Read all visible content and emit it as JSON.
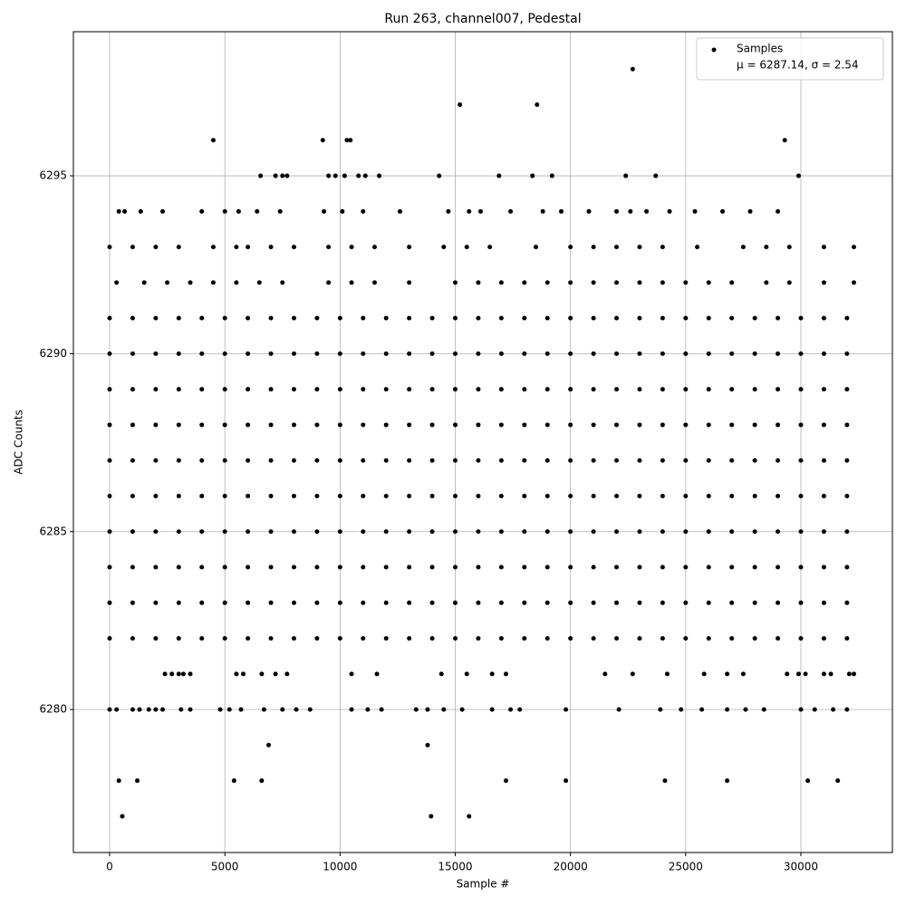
{
  "chart_data": {
    "type": "scatter",
    "title": "Run 263, channel007, Pedestal",
    "xlabel": "Sample #",
    "ylabel": "ADC Counts",
    "xlim": [
      -1573,
      33972
    ],
    "ylim": [
      6275.98,
      6299.05
    ],
    "xticks": [
      0,
      5000,
      10000,
      15000,
      20000,
      25000,
      30000
    ],
    "yticks": [
      6280,
      6285,
      6290,
      6295
    ],
    "grid": true,
    "legend_position": "upper right",
    "legend_stats": "μ = 6287.14, σ = 2.54",
    "x": [
      0,
      1000,
      2000,
      3000,
      4000,
      5000,
      6000,
      7000,
      8000,
      9000,
      10000,
      11000,
      12000,
      13000,
      14000,
      15000,
      16000,
      17000,
      18000,
      19000,
      20000,
      21000,
      22000,
      23000,
      24000,
      25000,
      26000,
      27000,
      28000,
      29000,
      30000,
      31000,
      32000,
      0,
      1000,
      2000,
      3000,
      4000,
      5000,
      6000,
      7000,
      8000,
      9000,
      10000,
      11000,
      12000,
      13000,
      14000,
      15000,
      16000,
      17000,
      18000,
      19000,
      20000,
      21000,
      22000,
      23000,
      24000,
      25000,
      26000,
      27000,
      28000,
      29000,
      30000,
      31000,
      32000,
      0,
      1000,
      2000,
      3000,
      4000,
      5000,
      6000,
      7000,
      8000,
      9000,
      10000,
      11000,
      12000,
      13000,
      14000,
      15000,
      16000,
      17000,
      18000,
      19000,
      20000,
      21000,
      22000,
      23000,
      24000,
      25000,
      26000,
      27000,
      28000,
      29000,
      30000,
      31000,
      32000,
      0,
      1000,
      2000,
      3000,
      4000,
      5000,
      6000,
      7000,
      8000,
      9000,
      10000,
      11000,
      12000,
      13000,
      14000,
      15000,
      16000,
      17000,
      18000,
      19000,
      20000,
      21000,
      22000,
      23000,
      24000,
      25000,
      26000,
      27000,
      28000,
      29000,
      30000,
      31000,
      32000,
      0,
      1000,
      2000,
      3000,
      4000,
      5000,
      6000,
      7000,
      8000,
      9000,
      10000,
      11000,
      12000,
      13000,
      14000,
      15000,
      16000,
      17000,
      18000,
      19000,
      20000,
      21000,
      22000,
      23000,
      24000,
      25000,
      26000,
      27000,
      28000,
      29000,
      30000,
      31000,
      32000,
      0,
      1000,
      2000,
      3000,
      4000,
      5000,
      6000,
      7000,
      8000,
      9000,
      10000,
      11000,
      12000,
      13000,
      14000,
      15000,
      16000,
      17000,
      18000,
      19000,
      20000,
      21000,
      22000,
      23000,
      24000,
      25000,
      26000,
      27000,
      28000,
      29000,
      30000,
      31000,
      32000,
      0,
      1000,
      2000,
      3000,
      4000,
      5000,
      6000,
      7000,
      8000,
      9000,
      10000,
      11000,
      12000,
      13000,
      14000,
      15000,
      16000,
      17000,
      18000,
      19000,
      20000,
      21000,
      22000,
      23000,
      24000,
      25000,
      26000,
      27000,
      28000,
      29000,
      30000,
      31000,
      32000,
      0,
      1000,
      2000,
      3000,
      4000,
      5000,
      6000,
      7000,
      8000,
      9000,
      10000,
      11000,
      12000,
      13000,
      14000,
      15000,
      16000,
      17000,
      18000,
      19000,
      20000,
      21000,
      22000,
      23000,
      24000,
      25000,
      26000,
      27000,
      28000,
      29000,
      30000,
      31000,
      32000,
      0,
      1000,
      2000,
      3000,
      4000,
      5000,
      6000,
      7000,
      8000,
      9000,
      10000,
      11000,
      12000,
      13000,
      14000,
      15000,
      16000,
      17000,
      18000,
      19000,
      20000,
      21000,
      22000,
      23000,
      24000,
      25000,
      26000,
      27000,
      28000,
      29000,
      30000,
      31000,
      32000,
      0,
      1000,
      2000,
      3000,
      4000,
      5000,
      6000,
      7000,
      8000,
      9000,
      10000,
      11000,
      12000,
      13000,
      14000,
      15000,
      16000,
      17000,
      18000,
      19000,
      20000,
      21000,
      22000,
      23000,
      24000,
      25000,
      26000,
      27000,
      28000,
      29000,
      30000,
      31000,
      32000,
      22700,
      15200,
      18550,
      4500,
      9250,
      10300,
      10450,
      29300,
      6550,
      7200,
      7500,
      7700,
      9500,
      9800,
      10200,
      10800,
      11100,
      11700,
      14300,
      16900,
      18350,
      19200,
      22400,
      23700,
      29900,
      400,
      650,
      1350,
      2300,
      4000,
      5000,
      5600,
      6400,
      7400,
      9300,
      10100,
      11000,
      12600,
      14700,
      15600,
      16100,
      17400,
      18800,
      19600,
      20800,
      22000,
      22600,
      23300,
      24300,
      25400,
      26600,
      27800,
      29000,
      0,
      1000,
      2000,
      3000,
      4500,
      5500,
      6000,
      7000,
      8000,
      9500,
      10500,
      11500,
      13000,
      14500,
      15500,
      16500,
      18500,
      20000,
      21000,
      22000,
      23000,
      24000,
      25500,
      27500,
      28500,
      29500,
      31000,
      32300,
      300,
      1500,
      2500,
      3500,
      4500,
      5500,
      6500,
      7500,
      9500,
      10500,
      11500,
      13000,
      15000,
      16000,
      17000,
      18000,
      19000,
      20000,
      21000,
      22000,
      23000,
      24000,
      25000,
      26000,
      27000,
      28500,
      29500,
      31000,
      32300,
      2400,
      2700,
      3000,
      3200,
      3500,
      5500,
      5800,
      6600,
      7200,
      7700,
      10500,
      11600,
      14400,
      15500,
      16600,
      17200,
      21500,
      22700,
      24200,
      25800,
      26800,
      27500,
      29400,
      29900,
      30200,
      31000,
      31300,
      32100,
      32300,
      0,
      300,
      1000,
      1300,
      1700,
      2000,
      2300,
      3100,
      3500,
      4800,
      5200,
      5700,
      6700,
      7500,
      8100,
      8700,
      10500,
      11200,
      11800,
      13300,
      13800,
      14500,
      15300,
      16600,
      17400,
      17800,
      19800,
      22100,
      23900,
      24800,
      25700,
      26800,
      27600,
      28400,
      30000,
      30600,
      31400,
      32000,
      6900,
      13800,
      400,
      1200,
      5400,
      6600,
      17200,
      19800,
      24100,
      26800,
      30300,
      31600,
      550,
      13950,
      15600
    ],
    "series": [
      {
        "name": "Samples",
        "color": "#000000",
        "values": [
          6282,
          6282,
          6282,
          6282,
          6282,
          6282,
          6282,
          6282,
          6282,
          6282,
          6282,
          6282,
          6282,
          6282,
          6282,
          6282,
          6282,
          6282,
          6282,
          6282,
          6282,
          6282,
          6282,
          6282,
          6282,
          6282,
          6282,
          6282,
          6282,
          6282,
          6282,
          6282,
          6282,
          6283,
          6283,
          6283,
          6283,
          6283,
          6283,
          6283,
          6283,
          6283,
          6283,
          6283,
          6283,
          6283,
          6283,
          6283,
          6283,
          6283,
          6283,
          6283,
          6283,
          6283,
          6283,
          6283,
          6283,
          6283,
          6283,
          6283,
          6283,
          6283,
          6283,
          6283,
          6283,
          6283,
          6284,
          6284,
          6284,
          6284,
          6284,
          6284,
          6284,
          6284,
          6284,
          6284,
          6284,
          6284,
          6284,
          6284,
          6284,
          6284,
          6284,
          6284,
          6284,
          6284,
          6284,
          6284,
          6284,
          6284,
          6284,
          6284,
          6284,
          6284,
          6284,
          6284,
          6284,
          6284,
          6284,
          6285,
          6285,
          6285,
          6285,
          6285,
          6285,
          6285,
          6285,
          6285,
          6285,
          6285,
          6285,
          6285,
          6285,
          6285,
          6285,
          6285,
          6285,
          6285,
          6285,
          6285,
          6285,
          6285,
          6285,
          6285,
          6285,
          6285,
          6285,
          6285,
          6285,
          6285,
          6285,
          6285,
          6286,
          6286,
          6286,
          6286,
          6286,
          6286,
          6286,
          6286,
          6286,
          6286,
          6286,
          6286,
          6286,
          6286,
          6286,
          6286,
          6286,
          6286,
          6286,
          6286,
          6286,
          6286,
          6286,
          6286,
          6286,
          6286,
          6286,
          6286,
          6286,
          6286,
          6286,
          6286,
          6286,
          6287,
          6287,
          6287,
          6287,
          6287,
          6287,
          6287,
          6287,
          6287,
          6287,
          6287,
          6287,
          6287,
          6287,
          6287,
          6287,
          6287,
          6287,
          6287,
          6287,
          6287,
          6287,
          6287,
          6287,
          6287,
          6287,
          6287,
          6287,
          6287,
          6287,
          6287,
          6287,
          6287,
          6288,
          6288,
          6288,
          6288,
          6288,
          6288,
          6288,
          6288,
          6288,
          6288,
          6288,
          6288,
          6288,
          6288,
          6288,
          6288,
          6288,
          6288,
          6288,
          6288,
          6288,
          6288,
          6288,
          6288,
          6288,
          6288,
          6288,
          6288,
          6288,
          6288,
          6288,
          6288,
          6288,
          6289,
          6289,
          6289,
          6289,
          6289,
          6289,
          6289,
          6289,
          6289,
          6289,
          6289,
          6289,
          6289,
          6289,
          6289,
          6289,
          6289,
          6289,
          6289,
          6289,
          6289,
          6289,
          6289,
          6289,
          6289,
          6289,
          6289,
          6289,
          6289,
          6289,
          6289,
          6289,
          6289,
          6290,
          6290,
          6290,
          6290,
          6290,
          6290,
          6290,
          6290,
          6290,
          6290,
          6290,
          6290,
          6290,
          6290,
          6290,
          6290,
          6290,
          6290,
          6290,
          6290,
          6290,
          6290,
          6290,
          6290,
          6290,
          6290,
          6290,
          6290,
          6290,
          6290,
          6290,
          6290,
          6290,
          6291,
          6291,
          6291,
          6291,
          6291,
          6291,
          6291,
          6291,
          6291,
          6291,
          6291,
          6291,
          6291,
          6291,
          6291,
          6291,
          6291,
          6291,
          6291,
          6291,
          6291,
          6291,
          6291,
          6291,
          6291,
          6291,
          6291,
          6291,
          6291,
          6291,
          6291,
          6291,
          6291,
          6298,
          6297,
          6297,
          6296,
          6296,
          6296,
          6296,
          6296,
          6295,
          6295,
          6295,
          6295,
          6295,
          6295,
          6295,
          6295,
          6295,
          6295,
          6295,
          6295,
          6295,
          6295,
          6295,
          6295,
          6295,
          6294,
          6294,
          6294,
          6294,
          6294,
          6294,
          6294,
          6294,
          6294,
          6294,
          6294,
          6294,
          6294,
          6294,
          6294,
          6294,
          6294,
          6294,
          6294,
          6294,
          6294,
          6294,
          6294,
          6294,
          6294,
          6294,
          6294,
          6294,
          6293,
          6293,
          6293,
          6293,
          6293,
          6293,
          6293,
          6293,
          6293,
          6293,
          6293,
          6293,
          6293,
          6293,
          6293,
          6293,
          6293,
          6293,
          6293,
          6293,
          6293,
          6293,
          6293,
          6293,
          6293,
          6293,
          6293,
          6293,
          6292,
          6292,
          6292,
          6292,
          6292,
          6292,
          6292,
          6292,
          6292,
          6292,
          6292,
          6292,
          6292,
          6292,
          6292,
          6292,
          6292,
          6292,
          6292,
          6292,
          6292,
          6292,
          6292,
          6292,
          6292,
          6292,
          6292,
          6292,
          6292,
          6281,
          6281,
          6281,
          6281,
          6281,
          6281,
          6281,
          6281,
          6281,
          6281,
          6281,
          6281,
          6281,
          6281,
          6281,
          6281,
          6281,
          6281,
          6281,
          6281,
          6281,
          6281,
          6281,
          6281,
          6281,
          6281,
          6281,
          6281,
          6281,
          6280,
          6280,
          6280,
          6280,
          6280,
          6280,
          6280,
          6280,
          6280,
          6280,
          6280,
          6280,
          6280,
          6280,
          6280,
          6280,
          6280,
          6280,
          6280,
          6280,
          6280,
          6280,
          6280,
          6280,
          6280,
          6280,
          6280,
          6280,
          6280,
          6280,
          6280,
          6280,
          6280,
          6280,
          6280,
          6280,
          6280,
          6280,
          6279,
          6279,
          6278,
          6278,
          6278,
          6278,
          6278,
          6278,
          6278,
          6278,
          6278,
          6278,
          6277,
          6277,
          6277
        ]
      }
    ]
  }
}
